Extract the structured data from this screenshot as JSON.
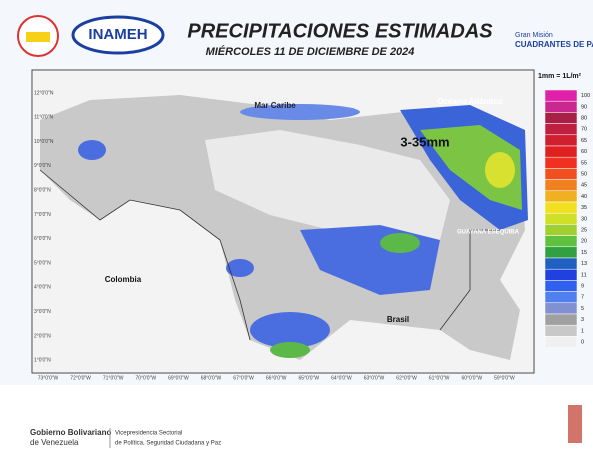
{
  "header": {
    "logo_text": "INAMEH",
    "title": "PRECIPITACIONES ESTIMADAS",
    "subtitle": "MIÉRCOLES 11 DE DICIEMBRE DE 2024",
    "mission_small": "Gran Misión",
    "mission_big": "CUADRANTES DE PA"
  },
  "map": {
    "labels": {
      "sea": "Mar Caribe",
      "ocean": "Océano Atlántico",
      "highlight": "3-35mm",
      "colombia": "Colombia",
      "brasil": "Brasil",
      "esequiba": "GUAYANA ESEQUIBA"
    },
    "lat_labels": [
      "12°0'0\"N",
      "11°0'0\"N",
      "10°0'0\"N",
      "9°0'0\"N",
      "8°0'0\"N",
      "7°0'0\"N",
      "6°0'0\"N",
      "5°0'0\"N",
      "4°0'0\"N",
      "3°0'0\"N",
      "2°0'0\"N",
      "1°0'0\"N"
    ],
    "lon_labels": [
      "73°0'0\"W",
      "72°0'0\"W",
      "71°0'0\"W",
      "70°0'0\"W",
      "69°0'0\"W",
      "68°0'0\"W",
      "67°0'0\"W",
      "66°0'0\"W",
      "65°0'0\"W",
      "64°0'0\"W",
      "63°0'0\"W",
      "62°0'0\"W",
      "61°0'0\"W",
      "60°0'0\"W",
      "59°0'0\"W"
    ]
  },
  "legend": {
    "unit": "1mm = 1L/m²",
    "items": [
      {
        "label": "100",
        "color": "#e020a8"
      },
      {
        "label": "90",
        "color": "#c82890"
      },
      {
        "label": "80",
        "color": "#a82048"
      },
      {
        "label": "70",
        "color": "#c02040"
      },
      {
        "label": "65",
        "color": "#d02030"
      },
      {
        "label": "60",
        "color": "#e02020"
      },
      {
        "label": "55",
        "color": "#f03020"
      },
      {
        "label": "50",
        "color": "#f05020"
      },
      {
        "label": "45",
        "color": "#f08020"
      },
      {
        "label": "40",
        "color": "#f0b020"
      },
      {
        "label": "35",
        "color": "#f0e020"
      },
      {
        "label": "30",
        "color": "#d0e028"
      },
      {
        "label": "25",
        "color": "#a0d030"
      },
      {
        "label": "20",
        "color": "#60c040"
      },
      {
        "label": "15",
        "color": "#30a040"
      },
      {
        "label": "13",
        "color": "#2060c0"
      },
      {
        "label": "11",
        "color": "#2040e0"
      },
      {
        "label": "9",
        "color": "#3060f0"
      },
      {
        "label": "7",
        "color": "#5080f0"
      },
      {
        "label": "5",
        "color": "#8090d0"
      },
      {
        "label": "3",
        "color": "#a0a0a0"
      },
      {
        "label": "1",
        "color": "#c8c8c8"
      },
      {
        "label": "0",
        "color": "#f0f0f0"
      }
    ]
  },
  "footer": {
    "gov_line1": "Gobierno Bolivariano",
    "gov_line2": "de Venezuela",
    "vice_line1": "Vicepresidencia Sectorial",
    "vice_line2": "de Política, Seguridad Ciudadana y Paz"
  }
}
